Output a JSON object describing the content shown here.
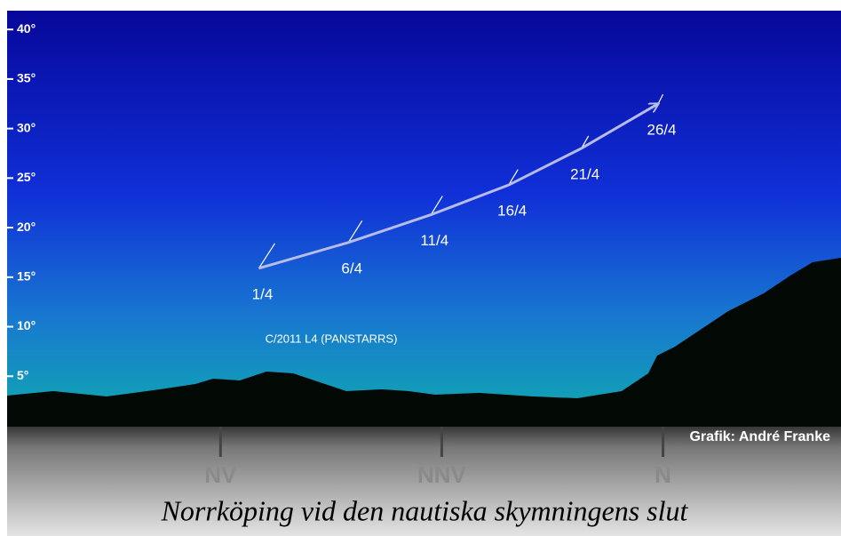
{
  "chart_data": {
    "type": "line",
    "title": "Norrköping vid den nautiska skymningens slut",
    "credit": "Grafik: André Franke",
    "xlim": [
      293.3,
      378.1
    ],
    "xticks": [
      {
        "value": 315,
        "label": "NV"
      },
      {
        "value": 337.5,
        "label": "NNV"
      },
      {
        "value": 360,
        "label": "N"
      }
    ],
    "ylim": [
      0,
      41.9
    ],
    "yticks": [
      {
        "value": 5,
        "label": "5°"
      },
      {
        "value": 10,
        "label": "10°"
      },
      {
        "value": 15,
        "label": "15°"
      },
      {
        "value": 20,
        "label": "20°"
      },
      {
        "value": 25,
        "label": "25°"
      },
      {
        "value": 30,
        "label": "30°"
      },
      {
        "value": 35,
        "label": "35°"
      },
      {
        "value": 40,
        "label": "40°"
      }
    ],
    "series": [
      {
        "name": "C/2011 L4 (PANSTARRS)",
        "color": "#b8bce8",
        "x": [
          318.9,
          328.0,
          336.4,
          344.3,
          351.7,
          359.5
        ],
        "values": [
          15.9,
          18.5,
          21.3,
          24.3,
          28.0,
          32.5
        ],
        "dates": [
          "1/4",
          "6/4",
          "11/4",
          "16/4",
          "21/4",
          "26/4"
        ]
      }
    ]
  }
}
